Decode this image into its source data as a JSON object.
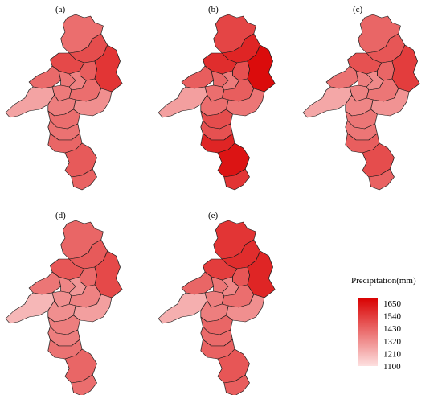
{
  "panels": [
    {
      "label": "(a)",
      "regions": [
        1380,
        1460,
        1520,
        1470,
        1420,
        1390,
        1360,
        1330,
        1250,
        1350,
        1380,
        1340,
        1300,
        1380,
        1370,
        1400,
        1430,
        1410
      ]
    },
    {
      "label": "(b)",
      "regions": [
        1480,
        1560,
        1620,
        1540,
        1450,
        1420,
        1400,
        1350,
        1260,
        1380,
        1420,
        1380,
        1360,
        1460,
        1450,
        1560,
        1600,
        1520
      ]
    },
    {
      "label": "(c)",
      "regions": [
        1400,
        1440,
        1500,
        1450,
        1400,
        1370,
        1340,
        1310,
        1240,
        1330,
        1360,
        1320,
        1290,
        1360,
        1360,
        1420,
        1460,
        1410
      ]
    },
    {
      "label": "(d)",
      "regions": [
        1400,
        1430,
        1470,
        1440,
        1390,
        1360,
        1320,
        1280,
        1200,
        1300,
        1330,
        1300,
        1260,
        1340,
        1340,
        1370,
        1400,
        1380
      ]
    },
    {
      "label": "(e)",
      "regions": [
        1520,
        1540,
        1560,
        1500,
        1440,
        1400,
        1360,
        1320,
        1220,
        1340,
        1380,
        1340,
        1300,
        1400,
        1390,
        1410,
        1440,
        1420
      ]
    }
  ],
  "legend": {
    "title": "Precipitation(mm)",
    "ticks": [
      "1650",
      "1540",
      "1430",
      "1320",
      "1210",
      "1100"
    ],
    "min": 1100,
    "max": 1650,
    "color_low": "#fde0e0",
    "color_high": "#d90000"
  }
}
